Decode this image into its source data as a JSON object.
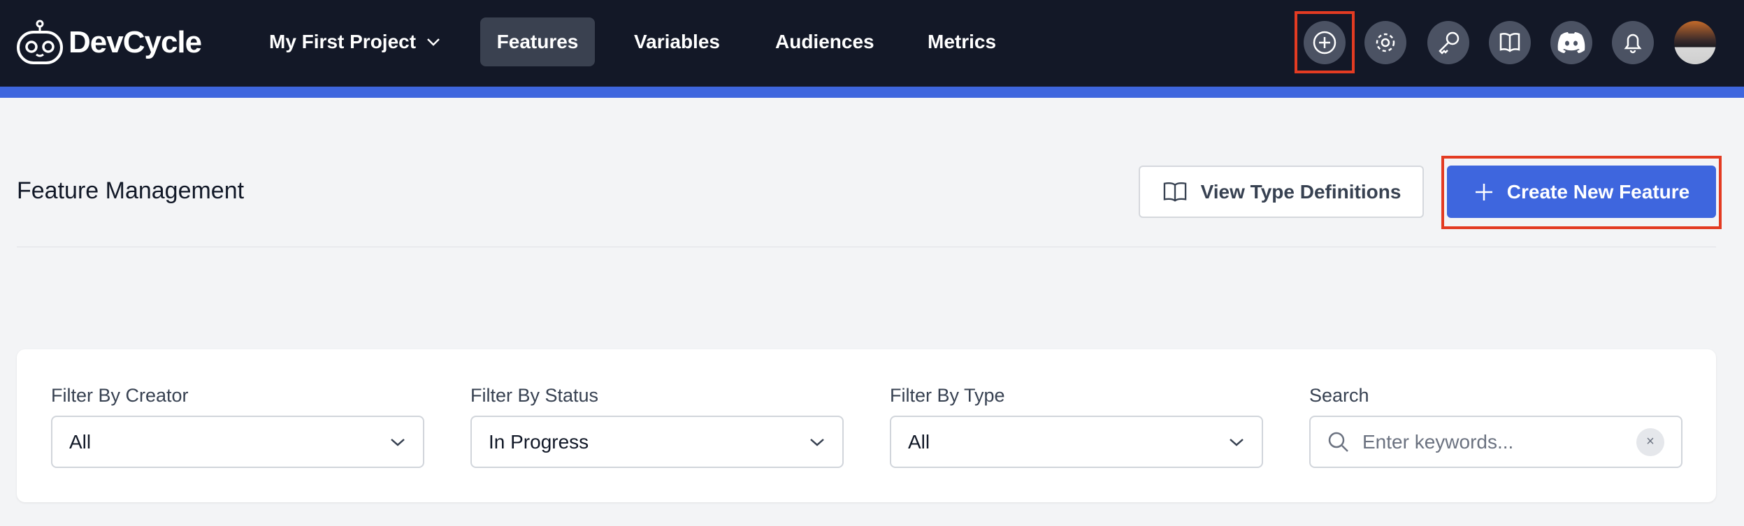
{
  "header": {
    "logo_text": "DevCycle",
    "project": "My First Project",
    "nav": [
      {
        "label": "Features",
        "active": true
      },
      {
        "label": "Variables"
      },
      {
        "label": "Audiences"
      },
      {
        "label": "Metrics"
      }
    ],
    "icons": [
      "plus-circle-icon",
      "gear-icon",
      "key-icon",
      "book-icon",
      "discord-icon",
      "bell-icon",
      "avatar"
    ],
    "accent": "#3e66de",
    "bg": "#131827"
  },
  "page": {
    "title": "Feature Management",
    "view_types_label": "View Type Definitions",
    "create_label": "Create New Feature"
  },
  "filters": {
    "creator": {
      "label": "Filter By Creator",
      "value": "All"
    },
    "status": {
      "label": "Filter By Status",
      "value": "In Progress"
    },
    "type": {
      "label": "Filter By Type",
      "value": "All"
    },
    "search": {
      "label": "Search",
      "placeholder": "Enter keywords...",
      "clear": "×"
    }
  }
}
